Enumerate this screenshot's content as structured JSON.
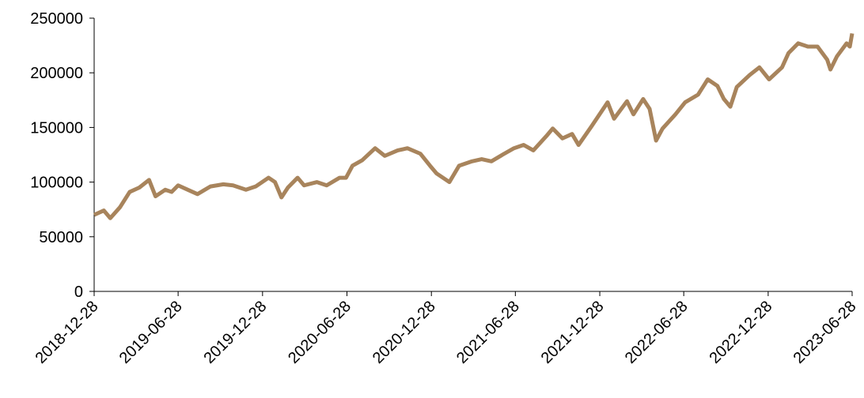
{
  "chart_data": {
    "type": "line",
    "x": [
      "2018-12-28",
      "2019-01-18",
      "2019-02-01",
      "2019-02-22",
      "2019-03-15",
      "2019-04-05",
      "2019-04-26",
      "2019-05-10",
      "2019-05-31",
      "2019-06-14",
      "2019-06-28",
      "2019-07-19",
      "2019-08-09",
      "2019-09-06",
      "2019-10-04",
      "2019-10-25",
      "2019-11-22",
      "2019-12-13",
      "2020-01-10",
      "2020-01-24",
      "2020-02-07",
      "2020-02-21",
      "2020-03-13",
      "2020-03-27",
      "2020-04-24",
      "2020-05-15",
      "2020-06-12",
      "2020-06-26",
      "2020-07-10",
      "2020-07-31",
      "2020-08-28",
      "2020-09-18",
      "2020-10-16",
      "2020-11-06",
      "2020-12-04",
      "2020-12-25",
      "2021-01-08",
      "2021-02-05",
      "2021-02-26",
      "2021-03-26",
      "2021-04-16",
      "2021-05-07",
      "2021-06-04",
      "2021-06-25",
      "2021-07-16",
      "2021-08-06",
      "2021-09-03",
      "2021-09-17",
      "2021-10-08",
      "2021-10-29",
      "2021-11-12",
      "2021-12-10",
      "2022-01-14",
      "2022-01-28",
      "2022-02-25",
      "2022-03-11",
      "2022-04-01",
      "2022-04-15",
      "2022-04-29",
      "2022-05-13",
      "2022-06-10",
      "2022-07-01",
      "2022-07-29",
      "2022-08-19",
      "2022-09-09",
      "2022-09-23",
      "2022-10-07",
      "2022-10-21",
      "2022-11-18",
      "2022-12-09",
      "2022-12-30",
      "2023-01-27",
      "2023-02-10",
      "2023-03-03",
      "2023-03-24",
      "2023-04-14",
      "2023-05-05",
      "2023-05-12",
      "2023-05-26",
      "2023-06-16",
      "2023-06-23",
      "2023-06-28"
    ],
    "series": [
      {
        "color": "#a8845c",
        "values": [
          70000,
          74000,
          67000,
          77000,
          91000,
          95000,
          102000,
          87000,
          93000,
          91000,
          97000,
          93000,
          89000,
          96000,
          98000,
          97000,
          93000,
          96000,
          104000,
          100000,
          86000,
          95000,
          104000,
          97000,
          100000,
          97000,
          104000,
          104000,
          115000,
          120000,
          131000,
          124000,
          129000,
          131000,
          126000,
          115000,
          108000,
          100000,
          115000,
          119000,
          121000,
          119000,
          126000,
          131000,
          134000,
          129000,
          142000,
          149000,
          140000,
          144000,
          134000,
          151000,
          173000,
          158000,
          174000,
          162000,
          176000,
          167000,
          138000,
          149000,
          162000,
          173000,
          180000,
          194000,
          188000,
          176000,
          169000,
          187000,
          198000,
          205000,
          194000,
          205000,
          218000,
          227000,
          224000,
          224000,
          212000,
          203000,
          215000,
          227000,
          224000,
          236000
        ]
      }
    ],
    "xlim": [
      "2018-12-28",
      "2023-06-28"
    ],
    "xticks": [
      "2018-12-28",
      "2019-06-28",
      "2019-12-28",
      "2020-06-28",
      "2020-12-28",
      "2021-06-28",
      "2021-12-28",
      "2022-06-28",
      "2022-12-28",
      "2023-06-28"
    ],
    "ylim": [
      0,
      250000
    ],
    "yticks": [
      0,
      50000,
      100000,
      150000,
      200000,
      250000
    ]
  }
}
